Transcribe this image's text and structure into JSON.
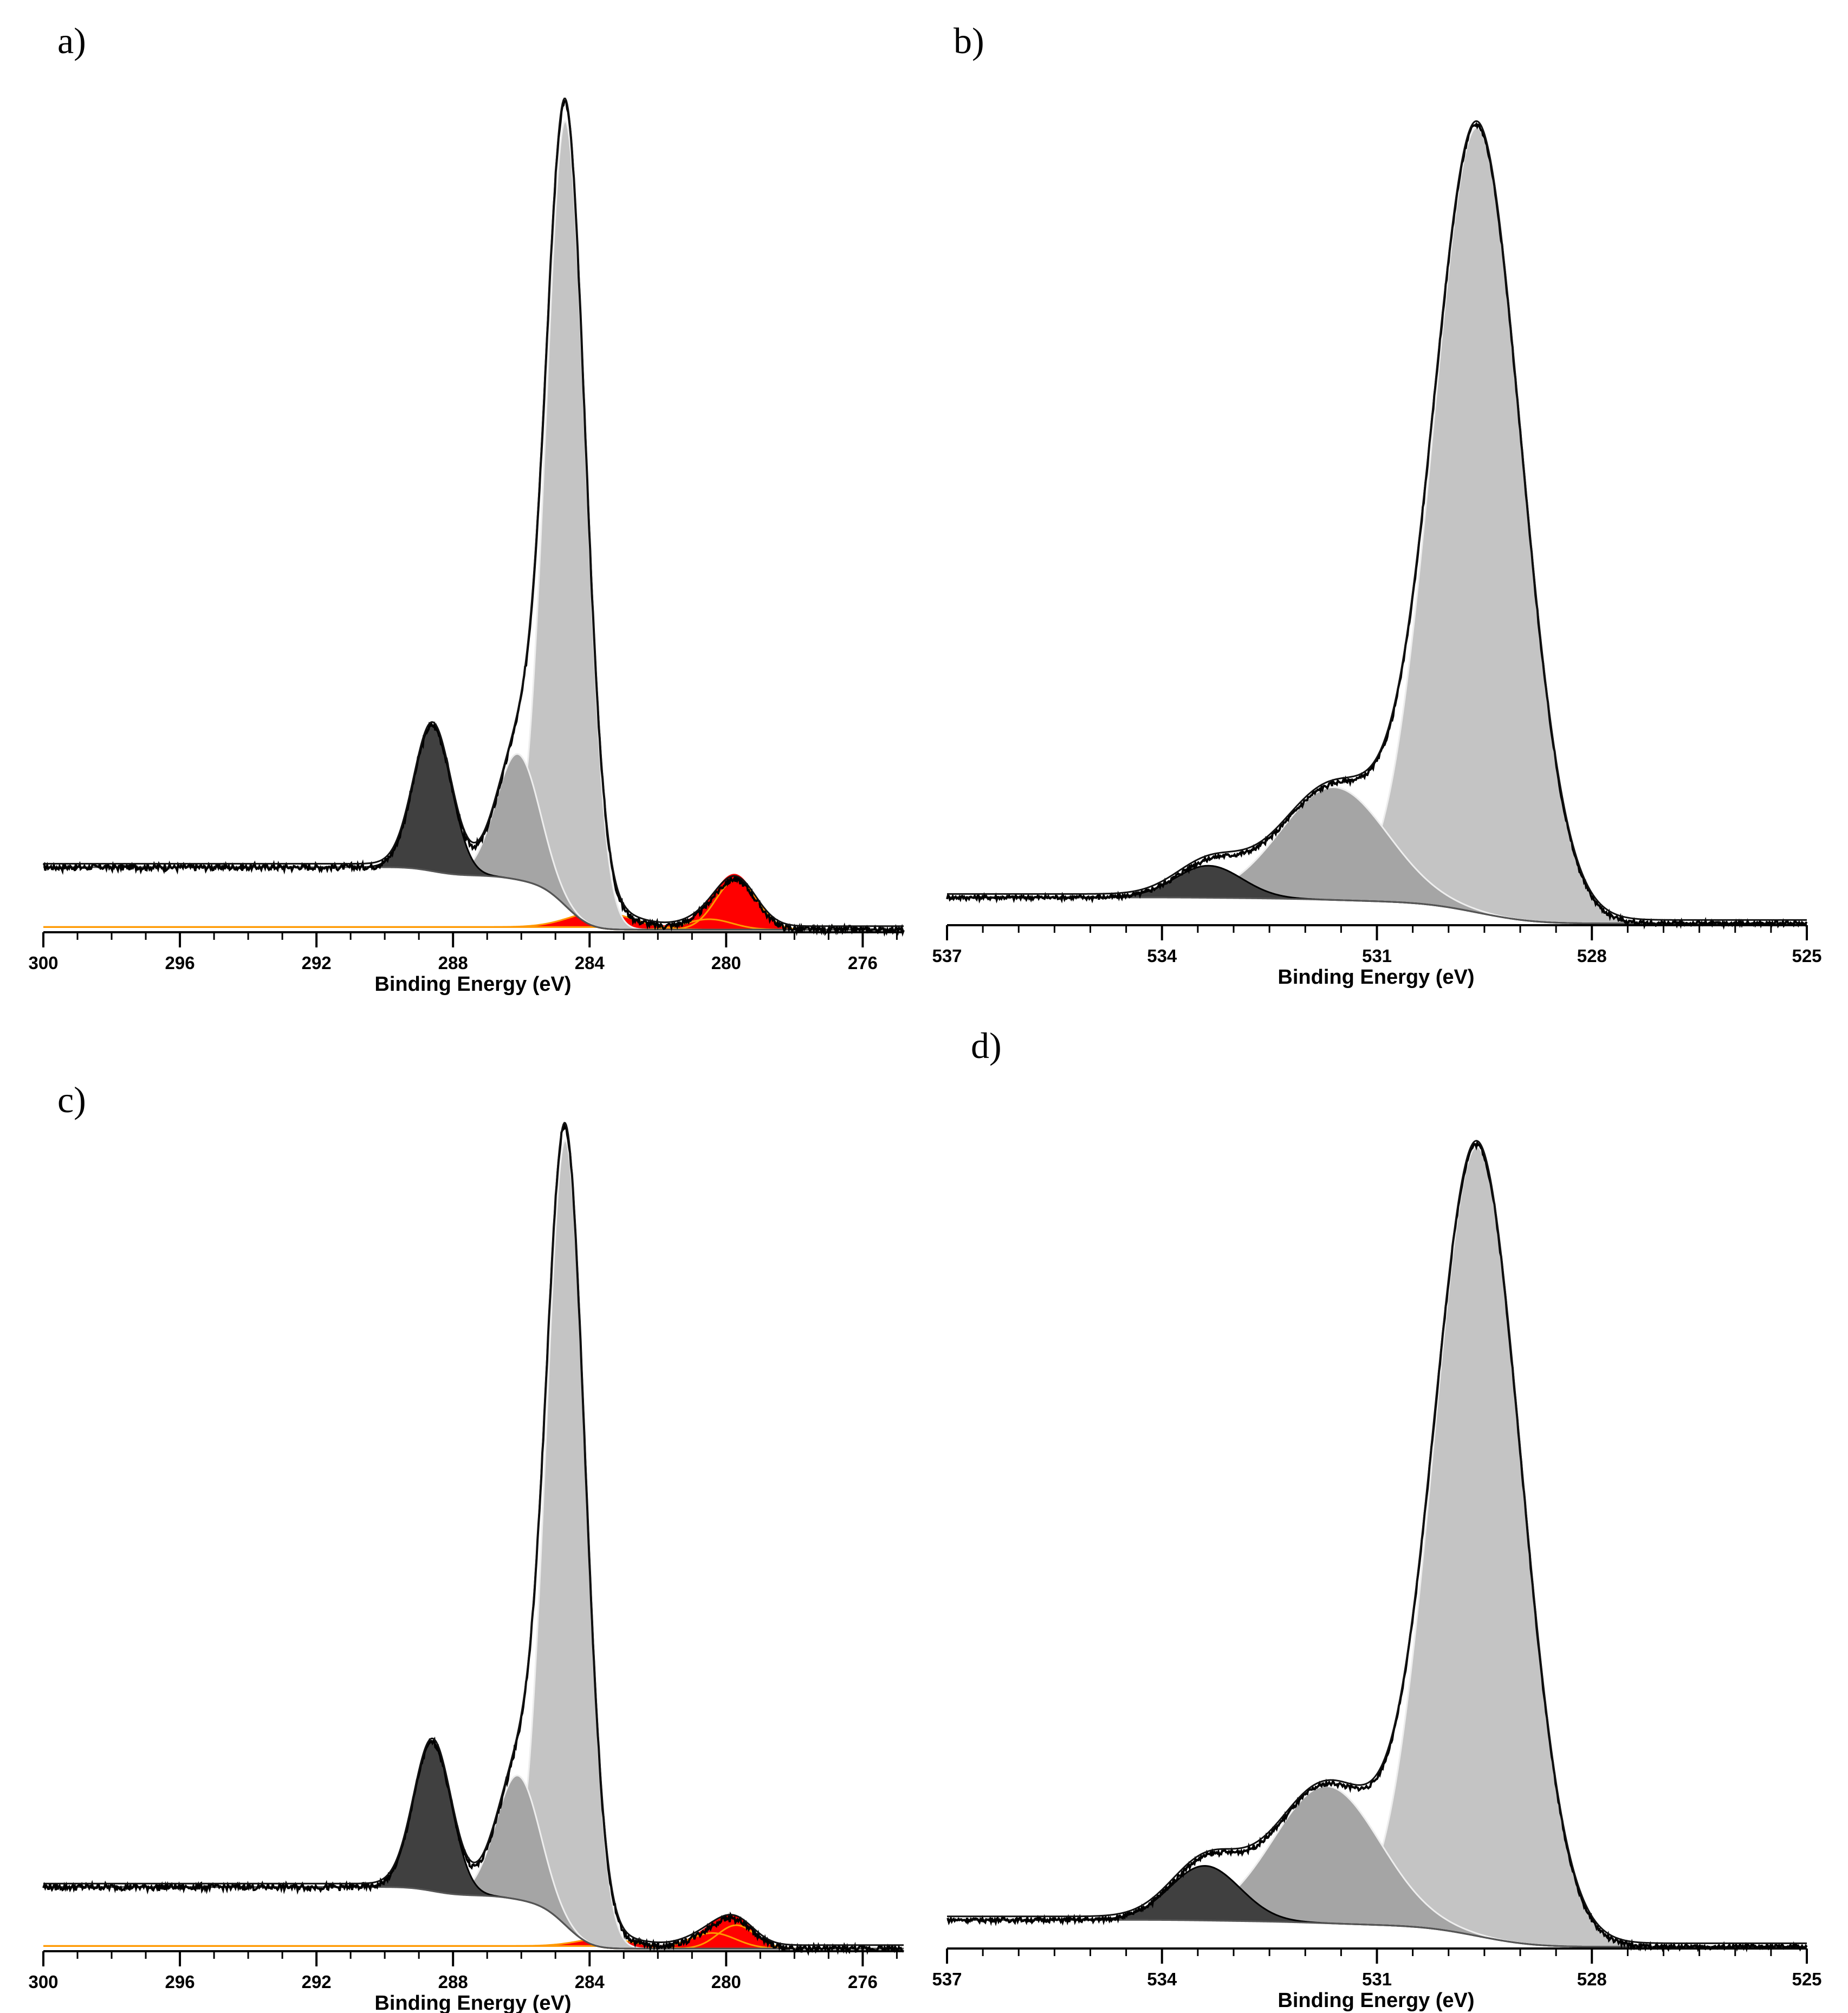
{
  "chart_data": [
    {
      "id": "a",
      "type": "area",
      "panel_label": "a)",
      "xlabel": "Binding Energy (eV)",
      "ylabel": "",
      "xlim": [
        300,
        274.8
      ],
      "x_reversed": true,
      "ylim": [
        0,
        100
      ],
      "grid": false,
      "x_ticks": [
        300,
        296,
        292,
        288,
        284,
        280,
        276
      ],
      "x_tick_labels": [
        "300",
        "296",
        "292",
        "288",
        "284",
        "280",
        "276"
      ],
      "components": [
        {
          "center": 284.7,
          "height": 90.5,
          "fwhm": 1.35,
          "base": "background",
          "color": "#c4c4c4",
          "outline": "#eeeeee"
        },
        {
          "center": 286.1,
          "height": 14.5,
          "fwhm": 1.5,
          "base": "background",
          "color": "#a5a5a5",
          "outline": "#eeeeee"
        },
        {
          "center": 288.6,
          "height": 16.8,
          "fwhm": 1.3,
          "base": "background",
          "color": "#404040",
          "outline": "#000000"
        },
        {
          "center": 283.6,
          "height": 1.9,
          "fwhm": 2.2,
          "base": "zero",
          "color": "#ff0000",
          "outline": "#ff9900"
        },
        {
          "center": 280.5,
          "height": 1.2,
          "fwhm": 1.6,
          "base": "zero",
          "color": "#ff0000",
          "outline": "#ff9900"
        },
        {
          "center": 279.7,
          "height": 5.8,
          "fwhm": 1.4,
          "base": "zero",
          "color": "#ff0000",
          "outline": "#ff9900"
        }
      ],
      "background": {
        "type": "shirley",
        "high_x": 300,
        "high_y": 7.5,
        "low_x": 274.8,
        "low_y": 0.3
      },
      "measured": {
        "noise": 0.35
      }
    },
    {
      "id": "b",
      "type": "area",
      "panel_label": "b)",
      "xlabel": "Binding Energy (eV)",
      "ylabel": "",
      "xlim": [
        537,
        525
      ],
      "x_reversed": true,
      "ylim": [
        0,
        100
      ],
      "grid": false,
      "x_ticks": [
        537,
        534,
        531,
        528,
        525
      ],
      "x_tick_labels": [
        "537",
        "534",
        "531",
        "528",
        "525"
      ],
      "components": [
        {
          "center": 529.6,
          "height": 90.5,
          "fwhm": 1.45,
          "base": "background",
          "color": "#c4c4c4",
          "outline": "#eeeeee"
        },
        {
          "center": 531.6,
          "height": 13.0,
          "fwhm": 1.75,
          "base": "background",
          "color": "#a5a5a5",
          "outline": "#eeeeee"
        },
        {
          "center": 533.35,
          "height": 3.7,
          "fwhm": 1.1,
          "base": "background",
          "color": "#404040",
          "outline": "#000000"
        }
      ],
      "background": {
        "type": "shirley",
        "high_x": 537,
        "high_y": 3.2,
        "low_x": 525,
        "low_y": 0.2
      },
      "measured": {
        "noise": 0.25
      }
    },
    {
      "id": "c",
      "type": "area",
      "panel_label": "c)",
      "xlabel": "Binding Energy (eV)",
      "ylabel": "",
      "xlim": [
        300,
        274.8
      ],
      "x_reversed": true,
      "ylim": [
        0,
        100
      ],
      "grid": false,
      "x_ticks": [
        300,
        296,
        292,
        288,
        284,
        280,
        276
      ],
      "x_tick_labels": [
        "300",
        "296",
        "292",
        "288",
        "284",
        "280",
        "276"
      ],
      "components": [
        {
          "center": 284.7,
          "height": 90.5,
          "fwhm": 1.35,
          "base": "background",
          "color": "#c4c4c4",
          "outline": "#eeeeee"
        },
        {
          "center": 286.1,
          "height": 14.3,
          "fwhm": 1.5,
          "base": "background",
          "color": "#a5a5a5",
          "outline": "#eeeeee"
        },
        {
          "center": 288.6,
          "height": 17.2,
          "fwhm": 1.3,
          "base": "background",
          "color": "#404040",
          "outline": "#000000"
        },
        {
          "center": 283.4,
          "height": 1.0,
          "fwhm": 2.0,
          "base": "zero",
          "color": "#ff0000",
          "outline": "#ff9900"
        },
        {
          "center": 280.4,
          "height": 1.8,
          "fwhm": 1.6,
          "base": "zero",
          "color": "#ff0000",
          "outline": "#ff9900"
        },
        {
          "center": 279.7,
          "height": 2.7,
          "fwhm": 1.3,
          "base": "zero",
          "color": "#ff0000",
          "outline": "#ff9900"
        }
      ],
      "background": {
        "type": "shirley",
        "high_x": 300,
        "high_y": 7.4,
        "low_x": 274.8,
        "low_y": 0.3
      },
      "measured": {
        "noise": 0.35
      }
    },
    {
      "id": "d",
      "type": "area",
      "panel_label": "d)",
      "xlabel": "Binding Energy (eV)",
      "ylabel": "",
      "xlim": [
        537,
        525
      ],
      "x_reversed": true,
      "ylim": [
        0,
        100
      ],
      "grid": false,
      "x_ticks": [
        537,
        534,
        531,
        528,
        525
      ],
      "x_tick_labels": [
        "537",
        "534",
        "531",
        "528",
        "525"
      ],
      "components": [
        {
          "center": 529.6,
          "height": 91.0,
          "fwhm": 1.45,
          "base": "background",
          "color": "#c4c4c4",
          "outline": "#eeeeee"
        },
        {
          "center": 531.7,
          "height": 15.8,
          "fwhm": 1.75,
          "base": "background",
          "color": "#a5a5a5",
          "outline": "#eeeeee"
        },
        {
          "center": 533.4,
          "height": 6.3,
          "fwhm": 1.15,
          "base": "background",
          "color": "#404040",
          "outline": "#000000"
        }
      ],
      "background": {
        "type": "shirley",
        "high_x": 537,
        "high_y": 3.3,
        "low_x": 525,
        "low_y": 0.2
      },
      "measured": {
        "noise": 0.25
      }
    }
  ]
}
